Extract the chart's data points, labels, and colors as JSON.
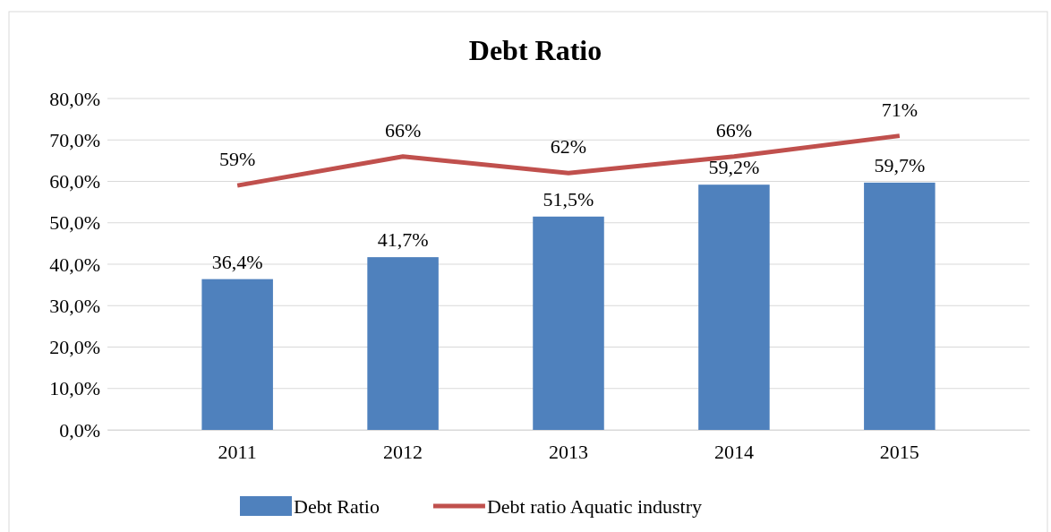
{
  "chart_data": {
    "type": "bar",
    "title": "Debt Ratio",
    "categories": [
      "2011",
      "2012",
      "2013",
      "2014",
      "2015"
    ],
    "series": [
      {
        "name": "Debt Ratio",
        "color": "#4f81bd",
        "values": [
          36.4,
          41.7,
          51.5,
          59.2,
          59.7
        ],
        "value_labels": [
          "36,4%",
          "41,7%",
          "51,5%",
          "59,2%",
          "59,7%"
        ]
      },
      {
        "name": "Debt ratio Aquatic industry",
        "type": "line",
        "color": "#c0504d",
        "values": [
          59,
          66,
          62,
          66,
          71
        ],
        "value_labels": [
          "59%",
          "66%",
          "62%",
          "66%",
          "71%"
        ]
      }
    ],
    "ylim": [
      0,
      80
    ],
    "yticks": [
      {
        "value": 0,
        "label": "0,0%"
      },
      {
        "value": 10,
        "label": "10,0%"
      },
      {
        "value": 20,
        "label": "20,0%"
      },
      {
        "value": 30,
        "label": "30,0%"
      },
      {
        "value": 40,
        "label": "40,0%"
      },
      {
        "value": 50,
        "label": "50,0%"
      },
      {
        "value": 60,
        "label": "60,0%"
      },
      {
        "value": 70,
        "label": "70,0%"
      },
      {
        "value": 80,
        "label": "80,0%"
      }
    ],
    "grid": "y",
    "legend": "bottom",
    "marker": "none",
    "line_style": "solid"
  }
}
